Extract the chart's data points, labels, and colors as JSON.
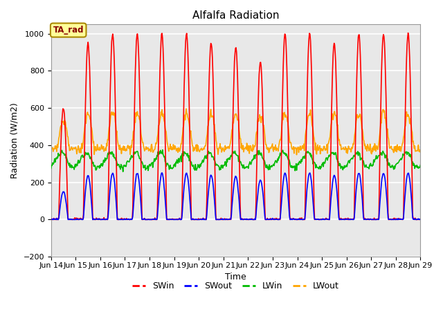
{
  "title": "Alfalfa Radiation",
  "xlabel": "Time",
  "ylabel": "Radiation (W/m2)",
  "ylim": [
    -200,
    1050
  ],
  "yticks": [
    -200,
    0,
    200,
    400,
    600,
    800,
    1000
  ],
  "xtick_labels": [
    "Jun 14",
    "Jun 15",
    "Jun 16",
    "Jun 17",
    "Jun 18",
    "Jun 19",
    "Jun 20",
    "Jun 21",
    "Jun 22",
    "Jun 23",
    "Jun 24",
    "Jun 25",
    "Jun 26",
    "Jun 27",
    "Jun 28",
    "Jun 29"
  ],
  "colors": {
    "SWin": "#FF0000",
    "SWout": "#0000FF",
    "LWin": "#00BB00",
    "LWout": "#FFA500"
  },
  "legend_label": "TA_rad",
  "legend_box_facecolor": "#FFFF99",
  "legend_box_edgecolor": "#AA8800",
  "background_color": "#E8E8E8",
  "grid_color": "#FFFFFF",
  "line_width": 1.2,
  "n_days": 15,
  "pts_per_hour": 2,
  "SWin_peaks": [
    0.6,
    0.95,
    1.0,
    1.0,
    1.0,
    1.0,
    0.95,
    0.93,
    0.85,
    1.0,
    1.0,
    0.95,
    1.0,
    1.0,
    1.0
  ],
  "LWin_base": 310,
  "LWin_amplitude": 30,
  "LWout_base": 400,
  "LWout_solar_add": 170
}
